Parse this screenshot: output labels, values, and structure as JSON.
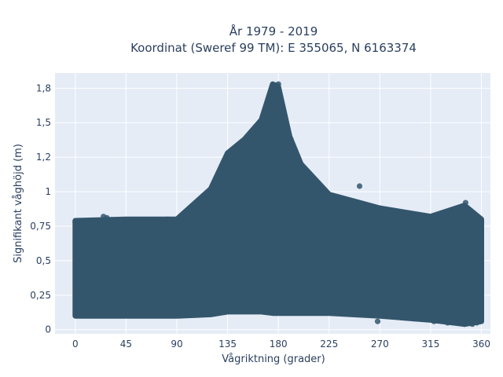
{
  "chart_data": {
    "type": "scatter",
    "title": [
      "År 1979 - 2019",
      "Koordinat (Sweref 99 TM): E 355065, N 6163374"
    ],
    "xlabel": "Vågriktning (grader)",
    "ylabel": "Signifikant våghöjd (m)",
    "xlim": [
      -18,
      368
    ],
    "ylim": [
      -0.03,
      1.86
    ],
    "x_ticks": [
      0,
      45,
      90,
      135,
      180,
      225,
      270,
      315,
      360
    ],
    "x_tick_labels": [
      "0",
      "45",
      "90",
      "135",
      "180",
      "225",
      "270",
      "315",
      "360"
    ],
    "y_ticks": [
      0,
      0.25,
      0.5,
      0.75,
      1,
      1.25,
      1.5,
      1.75
    ],
    "y_tick_labels": [
      "0",
      "0,25",
      "0,5",
      "0,75",
      "1",
      "1,2",
      "1,5",
      "1,8"
    ],
    "grid": true,
    "colors": {
      "marker": "#34566d",
      "plot_bg": "#e5ecf6",
      "grid": "#ffffff",
      "text": "#2a3f5f"
    },
    "envelope": {
      "x": [
        0,
        45,
        90,
        120,
        135,
        150,
        165,
        175,
        180,
        190,
        200,
        225,
        270,
        315,
        345,
        360
      ],
      "y_max": [
        0.79,
        0.8,
        0.8,
        1.02,
        1.28,
        1.38,
        1.52,
        1.78,
        1.76,
        1.4,
        1.2,
        0.98,
        0.88,
        0.82,
        0.9,
        0.8
      ],
      "y_min": [
        0.1,
        0.1,
        0.1,
        0.11,
        0.13,
        0.13,
        0.13,
        0.12,
        0.12,
        0.12,
        0.12,
        0.12,
        0.1,
        0.07,
        0.04,
        0.06
      ]
    },
    "series": [
      {
        "x": [
          0,
          2,
          5,
          9,
          14,
          18,
          22,
          25,
          28,
          35,
          44,
          52,
          60,
          68,
          75,
          82,
          88,
          95,
          100,
          105,
          112,
          118,
          124,
          128,
          132,
          136,
          140,
          143,
          146,
          150,
          154,
          158,
          161,
          164,
          167,
          170,
          172,
          174,
          176,
          177,
          178,
          179,
          180,
          181,
          182,
          183,
          185,
          187,
          189,
          191,
          193,
          195,
          198,
          200,
          203,
          206,
          210,
          214,
          218,
          222,
          226,
          230,
          236,
          242,
          248,
          252,
          258,
          262,
          266,
          270,
          276,
          282,
          288,
          294,
          300,
          306,
          312,
          318,
          324,
          330,
          335,
          340,
          343,
          346,
          350,
          355,
          358,
          360
        ],
        "y": [
          0.78,
          0.79,
          0.7,
          0.76,
          0.72,
          0.74,
          0.76,
          0.82,
          0.81,
          0.74,
          0.77,
          0.74,
          0.79,
          0.75,
          0.78,
          0.8,
          0.74,
          0.8,
          0.82,
          0.84,
          0.92,
          0.96,
          0.98,
          1.01,
          1.06,
          1.12,
          1.18,
          1.2,
          1.24,
          1.32,
          1.26,
          1.3,
          1.34,
          1.38,
          1.36,
          1.44,
          1.5,
          1.48,
          1.56,
          1.59,
          1.64,
          1.77,
          1.78,
          1.62,
          1.56,
          1.52,
          1.48,
          1.44,
          1.42,
          1.38,
          1.32,
          1.3,
          1.22,
          1.2,
          1.14,
          1.06,
          1.02,
          0.98,
          0.96,
          0.94,
          0.9,
          0.86,
          0.84,
          0.86,
          0.88,
          1.04,
          0.84,
          0.82,
          0.84,
          0.88,
          0.82,
          0.86,
          0.84,
          0.78,
          0.8,
          0.8,
          0.74,
          0.78,
          0.82,
          0.8,
          0.82,
          0.84,
          0.86,
          0.92,
          0.82,
          0.8,
          0.78,
          0.78
        ]
      },
      {
        "x": [
          268,
          300,
          318,
          330,
          340,
          345,
          348,
          352,
          356,
          359
        ],
        "y": [
          0.06,
          0.08,
          0.06,
          0.05,
          0.05,
          0.04,
          0.05,
          0.04,
          0.05,
          0.08
        ]
      }
    ]
  }
}
